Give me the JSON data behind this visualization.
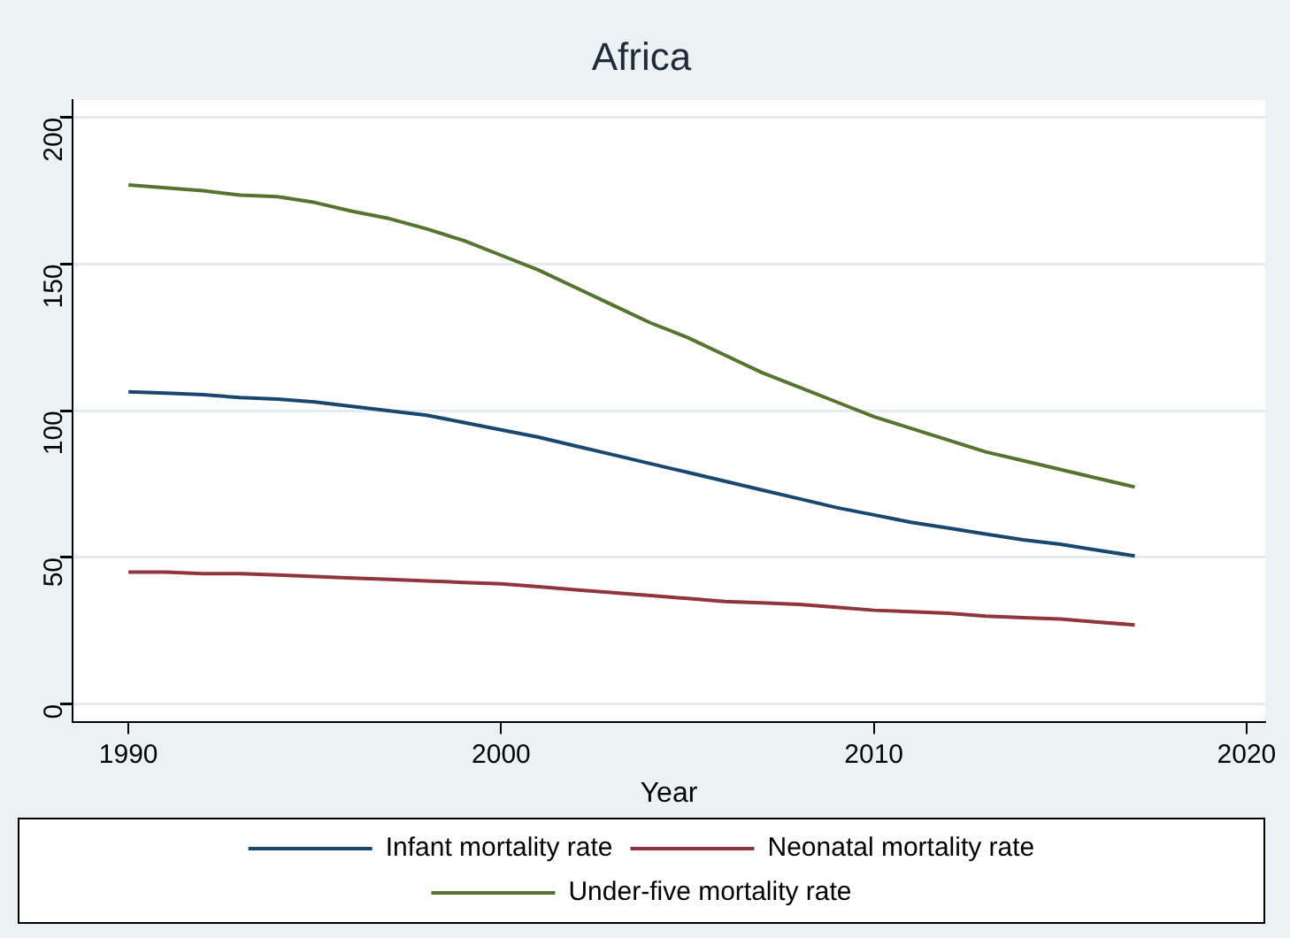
{
  "chart_data": {
    "type": "line",
    "title": "Africa",
    "xlabel": "Year",
    "x": [
      1990,
      1991,
      1992,
      1993,
      1994,
      1995,
      1996,
      1997,
      1998,
      1999,
      2000,
      2001,
      2002,
      2003,
      2004,
      2005,
      2006,
      2007,
      2008,
      2009,
      2010,
      2011,
      2012,
      2013,
      2014,
      2015,
      2016,
      2017
    ],
    "series": [
      {
        "name": "Infant mortality rate",
        "color": "#1a476f",
        "values": [
          106.5,
          106,
          105.5,
          104.5,
          104,
          103,
          101.5,
          100,
          98.5,
          96,
          93.5,
          91,
          88,
          85,
          82,
          79,
          76,
          73,
          70,
          67,
          64.5,
          62,
          60,
          58,
          56,
          54.5,
          52.5,
          50.5
        ]
      },
      {
        "name": "Neonatal mortality rate",
        "color": "#90353b",
        "values": [
          45,
          45,
          44.5,
          44.5,
          44,
          43.5,
          43,
          42.5,
          42,
          41.5,
          41,
          40,
          39,
          38,
          37,
          36,
          35,
          34.5,
          34,
          33,
          32,
          31.5,
          31,
          30,
          29.5,
          29,
          28,
          27
        ]
      },
      {
        "name": "Under-five mortality rate",
        "color": "#55752f",
        "values": [
          177,
          176,
          175,
          173.5,
          173,
          171,
          168,
          165.5,
          162,
          158,
          153,
          148,
          142,
          136,
          130,
          125,
          119,
          113,
          108,
          103,
          98,
          94,
          90,
          86,
          83,
          80,
          77,
          74
        ]
      }
    ],
    "xlim": [
      1988.5,
      2020.5
    ],
    "xticks": [
      1990,
      2000,
      2010,
      2020
    ],
    "ylim": [
      -6,
      206
    ],
    "yticks": [
      0,
      50,
      100,
      150,
      200
    ],
    "grid": "y",
    "legend": "bottom",
    "marker": "none",
    "line_style": "solid"
  }
}
